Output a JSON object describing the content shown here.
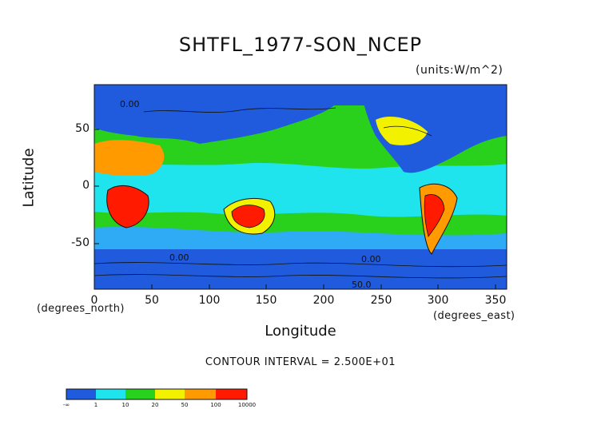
{
  "map": {
    "title": "SHTFL_1977-SON_NCEP",
    "units": "(units:W/m^2)",
    "ylabel": "Latitude",
    "xlabel": "Longitude",
    "y_unit": "(degrees_north)",
    "x_unit": "(degrees_east)",
    "contour_interval": "CONTOUR INTERVAL = 2.500E+01",
    "yticks": [
      "50",
      "0",
      "-50"
    ],
    "xticks": [
      "0",
      "50",
      "100",
      "150",
      "200",
      "250",
      "300",
      "350"
    ],
    "contour_labels": [
      "0.00",
      "0.00",
      "0.00",
      "50.0"
    ],
    "lon_range": [
      0,
      360
    ],
    "lat_range": [
      -90,
      90
    ]
  },
  "colorbar": {
    "labels": [
      "-∞",
      "1",
      "10",
      "20",
      "50",
      "100",
      "10000"
    ],
    "colors": [
      "#1f5bdc",
      "#2faaf4",
      "#1fe4ee",
      "#28d21c",
      "#f2f200",
      "#ff9a00",
      "#ff1a00"
    ]
  }
}
